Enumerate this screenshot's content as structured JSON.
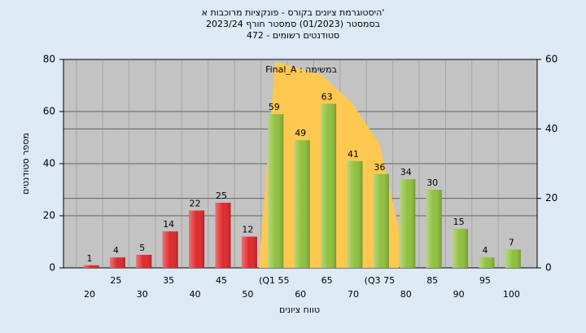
{
  "chart_data": {
    "type": "bar",
    "title_lines": [
      "היסטוגרמת ציונים בקורס - פונקציות מרוכבות א'",
      "בסמסטר  (01/2023)  סמסטר חורף 2023/24",
      "סטודנטים רשומים - 472"
    ],
    "annotation": "Final_A : במשימה",
    "x_label": "טווח ציונים",
    "y_label": "מספר סטודנטים",
    "categories": [
      "20",
      "25",
      "30",
      "35",
      "40",
      "45",
      "50",
      "(Q1 55",
      "60",
      "65",
      "70",
      "(Q3 75",
      "80",
      "85",
      "90",
      "95",
      "100"
    ],
    "values": [
      1,
      4,
      5,
      14,
      22,
      25,
      12,
      59,
      49,
      63,
      41,
      36,
      34,
      30,
      15,
      4,
      7
    ],
    "colors": [
      "#e0282c",
      "#e0282c",
      "#e0282c",
      "#e0282c",
      "#e0282c",
      "#e0282c",
      "#e0282c",
      "#8fc03c",
      "#8fc03c",
      "#8fc03c",
      "#8fc03c",
      "#8fc03c",
      "#8fc03c",
      "#8fc03c",
      "#8fc03c",
      "#8fc03c",
      "#8fc03c"
    ],
    "ylim": [
      0,
      80
    ],
    "yticks": [
      0,
      20,
      40,
      60,
      80
    ],
    "y2lim": [
      0,
      60
    ],
    "y2ticks": [
      0,
      20,
      40,
      60
    ],
    "grid": true
  }
}
